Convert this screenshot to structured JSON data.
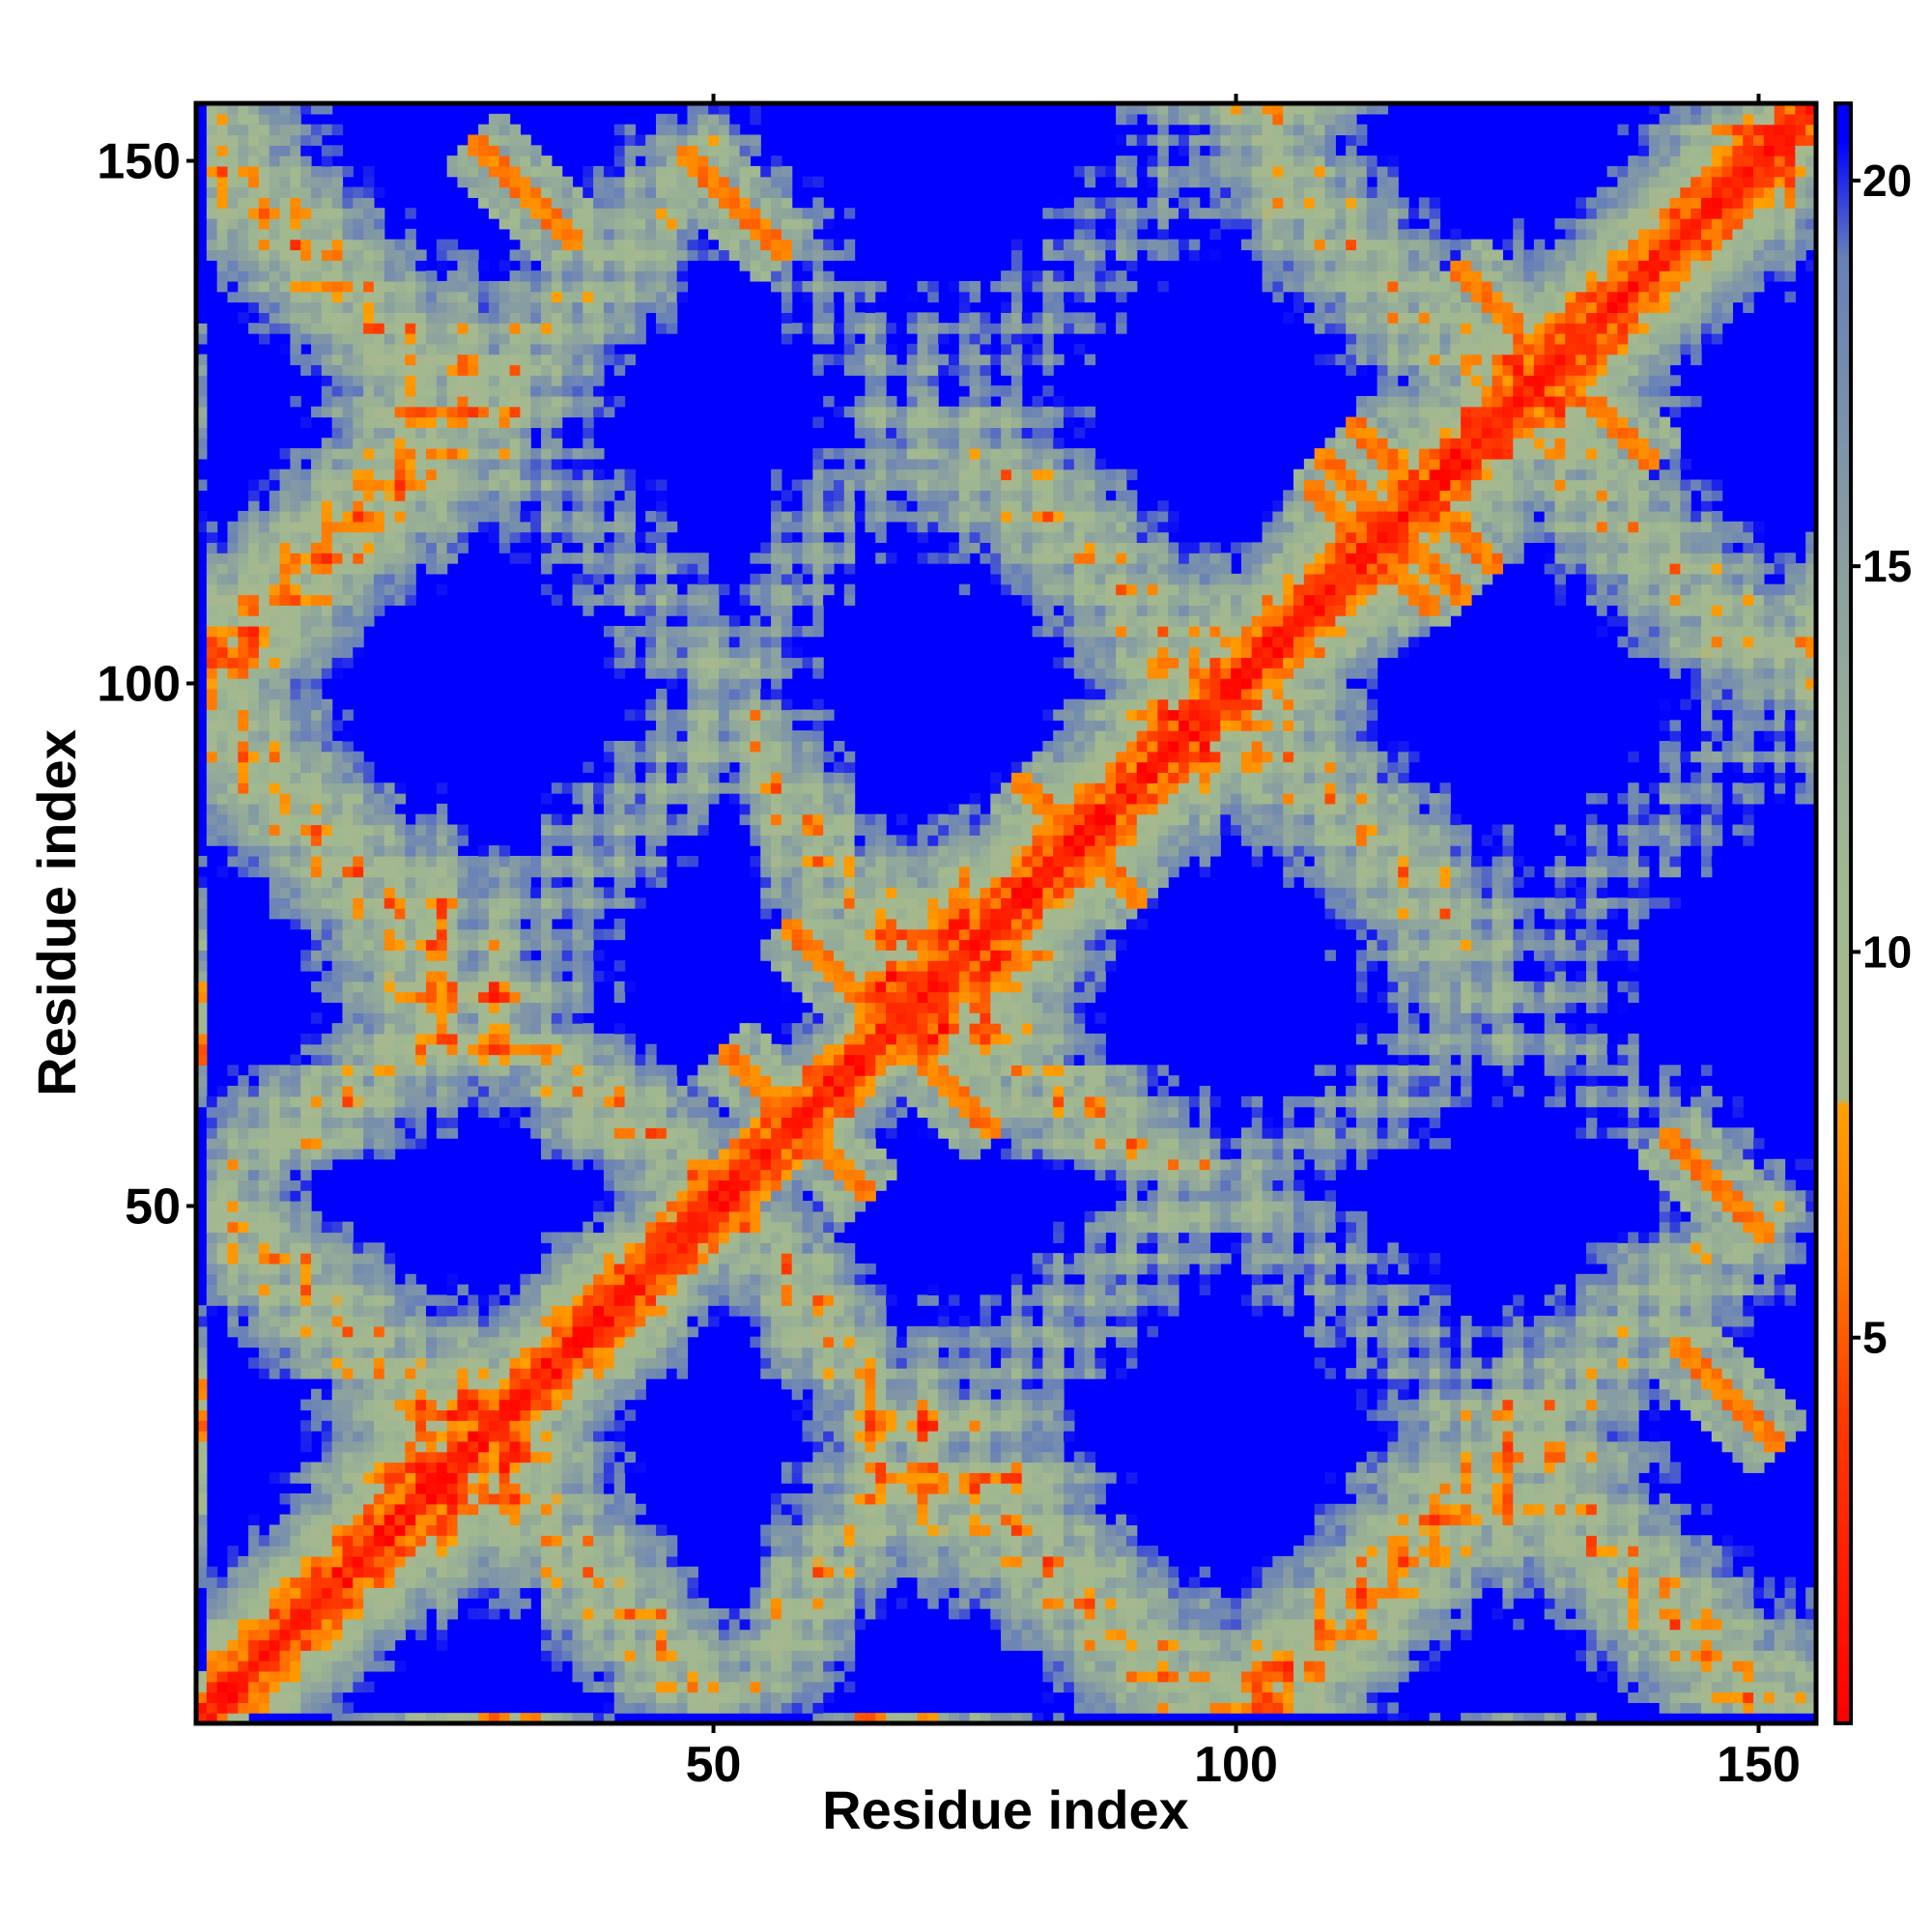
{
  "chart_data": {
    "type": "heatmap",
    "title": "",
    "xlabel": "Residue index",
    "ylabel": "Residue index",
    "n_residues": 155,
    "xlim": [
      1,
      155
    ],
    "ylim": [
      1,
      155
    ],
    "x_ticks": [
      50,
      100,
      150
    ],
    "y_ticks": [
      50,
      100,
      150
    ],
    "colorbar": {
      "range": [
        0,
        21
      ],
      "ticks": [
        5,
        10,
        15,
        20
      ],
      "stops": [
        {
          "value": 0,
          "color": "#ff0000"
        },
        {
          "value": 4,
          "color": "#ff3a00"
        },
        {
          "value": 6,
          "color": "#ff7a00"
        },
        {
          "value": 8,
          "color": "#ffa000"
        },
        {
          "value": 8.1,
          "color": "#a8b88e"
        },
        {
          "value": 11,
          "color": "#a0b890"
        },
        {
          "value": 15,
          "color": "#8aa0a0"
        },
        {
          "value": 19,
          "color": "#6880b8"
        },
        {
          "value": 20.5,
          "color": "#0000ff"
        }
      ]
    },
    "background_color": "#0000ff",
    "features": {
      "diagonal_band_width": 1.8,
      "helices": [
        [
          2,
          23
        ],
        [
          34,
          47
        ],
        [
          55,
          63
        ],
        [
          75,
          96
        ],
        [
          104,
          121
        ],
        [
          128,
          152
        ]
      ],
      "antiparallel_contacts": [
        {
          "center": [
            58,
            58
          ],
          "length": 14
        },
        {
          "center": [
            85,
            85
          ],
          "length": 12
        },
        {
          "center": [
            113,
            113
          ],
          "length": 12
        },
        {
          "center": [
            118,
            118
          ],
          "length": 14
        },
        {
          "center": [
            62,
            72
          ],
          "length": 10
        },
        {
          "center": [
            78,
            63
          ],
          "length": 10
        },
        {
          "center": [
            32,
            147
          ],
          "length": 10
        },
        {
          "center": [
            52,
            146
          ],
          "length": 10
        },
        {
          "center": [
            147,
            52
          ],
          "length": 10
        },
        {
          "center": [
            149,
            27
          ],
          "length": 10
        },
        {
          "center": [
            124,
            137
          ],
          "length": 6
        },
        {
          "center": [
            141,
            123
          ],
          "length": 8
        },
        {
          "center": [
            120,
            116
          ],
          "length": 8
        },
        {
          "center": [
            112,
            118
          ],
          "length": 8
        }
      ]
    }
  }
}
